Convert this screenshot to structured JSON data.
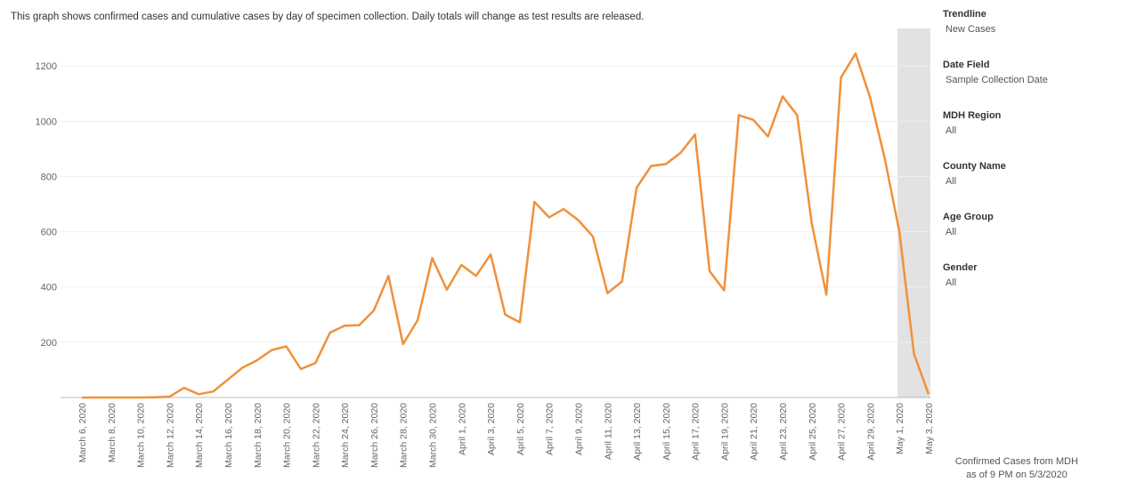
{
  "chart_data": {
    "type": "line",
    "title": "This graph shows confirmed cases and cumulative cases by day of specimen collection. Daily totals will change as test results are released.",
    "categories": [
      "March 6, 2020",
      null,
      "March 8, 2020",
      null,
      "March 10, 2020",
      null,
      "March 12, 2020",
      null,
      "March 14, 2020",
      null,
      "March 16, 2020",
      null,
      "March 18, 2020",
      null,
      "March 20, 2020",
      null,
      "March 22, 2020",
      null,
      "March 24, 2020",
      null,
      "March 26, 2020",
      null,
      "March 28, 2020",
      null,
      "March 30, 2020",
      null,
      "April 1, 2020",
      null,
      "April 3, 2020",
      null,
      "April 5, 2020",
      null,
      "April 7, 2020",
      null,
      "April 9, 2020",
      null,
      "April 11, 2020",
      null,
      "April 13, 2020",
      null,
      "April 15, 2020",
      null,
      "April 17, 2020",
      null,
      "April 19, 2020",
      null,
      "April 21, 2020",
      null,
      "April 23, 2020",
      null,
      "April 25, 2020",
      null,
      "April 27, 2020",
      null,
      "April 29, 2020",
      null,
      "May 1, 2020",
      null,
      "May 3, 2020"
    ],
    "series": [
      {
        "name": "New Cases",
        "color": "#f0913a",
        "values": [
          0,
          0,
          0,
          0,
          0,
          1,
          3,
          35,
          12,
          22,
          65,
          108,
          135,
          172,
          185,
          103,
          125,
          235,
          260,
          262,
          315,
          440,
          193,
          280,
          505,
          390,
          480,
          440,
          518,
          300,
          272,
          708,
          652,
          682,
          642,
          583,
          378,
          420,
          760,
          838,
          845,
          885,
          952,
          457,
          388,
          1022,
          1005,
          945,
          1090,
          1022,
          630,
          372,
          1158,
          1245,
          1085,
          865,
          600,
          158,
          12
        ]
      }
    ],
    "ylim": [
      0,
      1310
    ],
    "yticks": [
      200,
      400,
      600,
      800,
      1000,
      1200
    ],
    "grid": true
  },
  "filters": [
    {
      "label": "Trendline",
      "value": "New Cases"
    },
    {
      "label": "Date Field",
      "value": "Sample Collection Date"
    },
    {
      "label": "MDH Region",
      "value": "All"
    },
    {
      "label": "County Name",
      "value": "All"
    },
    {
      "label": "Age Group",
      "value": "All"
    },
    {
      "label": "Gender",
      "value": "All"
    }
  ],
  "footnote": [
    "Confirmed Cases from MDH",
    "as of 9 PM on 5/3/2020"
  ]
}
